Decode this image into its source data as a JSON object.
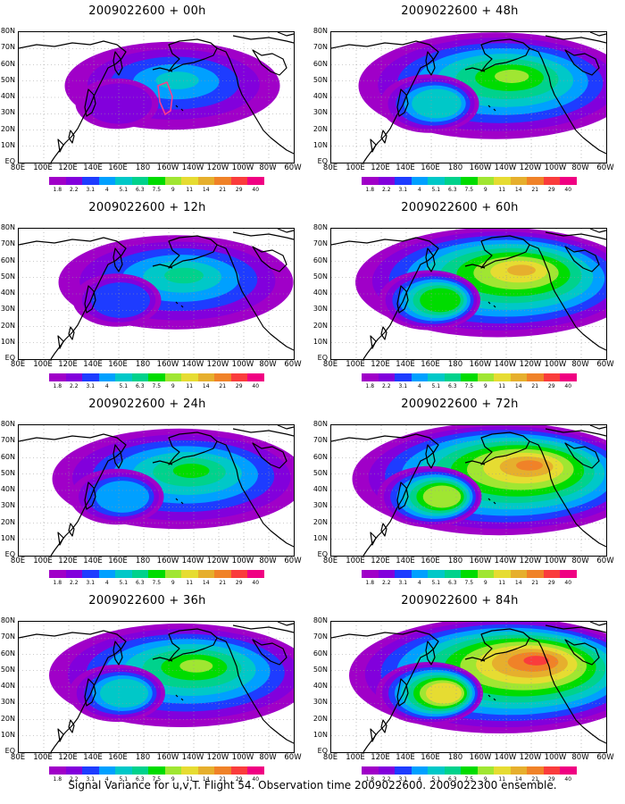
{
  "panels": [
    {
      "title": "2009022600 + 00h",
      "intensity": 0.35,
      "extent": 0.55,
      "show_flight_track": true
    },
    {
      "title": "2009022600 + 12h",
      "intensity": 0.45,
      "extent": 0.65,
      "show_flight_track": false
    },
    {
      "title": "2009022600 + 24h",
      "intensity": 0.55,
      "extent": 0.75,
      "show_flight_track": false
    },
    {
      "title": "2009022600 + 36h",
      "intensity": 0.6,
      "extent": 0.8,
      "show_flight_track": false
    },
    {
      "title": "2009022600 + 48h",
      "intensity": 0.65,
      "extent": 0.85,
      "show_flight_track": false
    },
    {
      "title": "2009022600 + 60h",
      "intensity": 0.75,
      "extent": 0.9,
      "show_flight_track": false
    },
    {
      "title": "2009022600 + 72h",
      "intensity": 0.85,
      "extent": 0.95,
      "show_flight_track": false
    },
    {
      "title": "2009022600 + 84h",
      "intensity": 0.9,
      "extent": 1.0,
      "show_flight_track": false
    }
  ],
  "lat_labels": [
    "80N",
    "70N",
    "60N",
    "50N",
    "40N",
    "30N",
    "20N",
    "10N",
    "EQ"
  ],
  "lon_labels": [
    "80E",
    "100E",
    "120E",
    "140E",
    "160E",
    "180",
    "160W",
    "140W",
    "120W",
    "100W",
    "80W",
    "60W"
  ],
  "colorbar": {
    "ticks": [
      "1.8",
      "2.2",
      "3.1",
      "4",
      "5.1",
      "6.3",
      "7.5",
      "9",
      "11",
      "14",
      "21",
      "29",
      "40"
    ],
    "colors": [
      "#a000c8",
      "#8200dc",
      "#1e3cff",
      "#00a0ff",
      "#00c8c8",
      "#00d28c",
      "#00dc00",
      "#a0e632",
      "#e6dc32",
      "#e6af2d",
      "#f08228",
      "#fa3c3c",
      "#f00082"
    ]
  },
  "caption": "Signal Variance for u,v,T. Flight 54. Observation time 2009022600. 2009022300 ensemble."
}
